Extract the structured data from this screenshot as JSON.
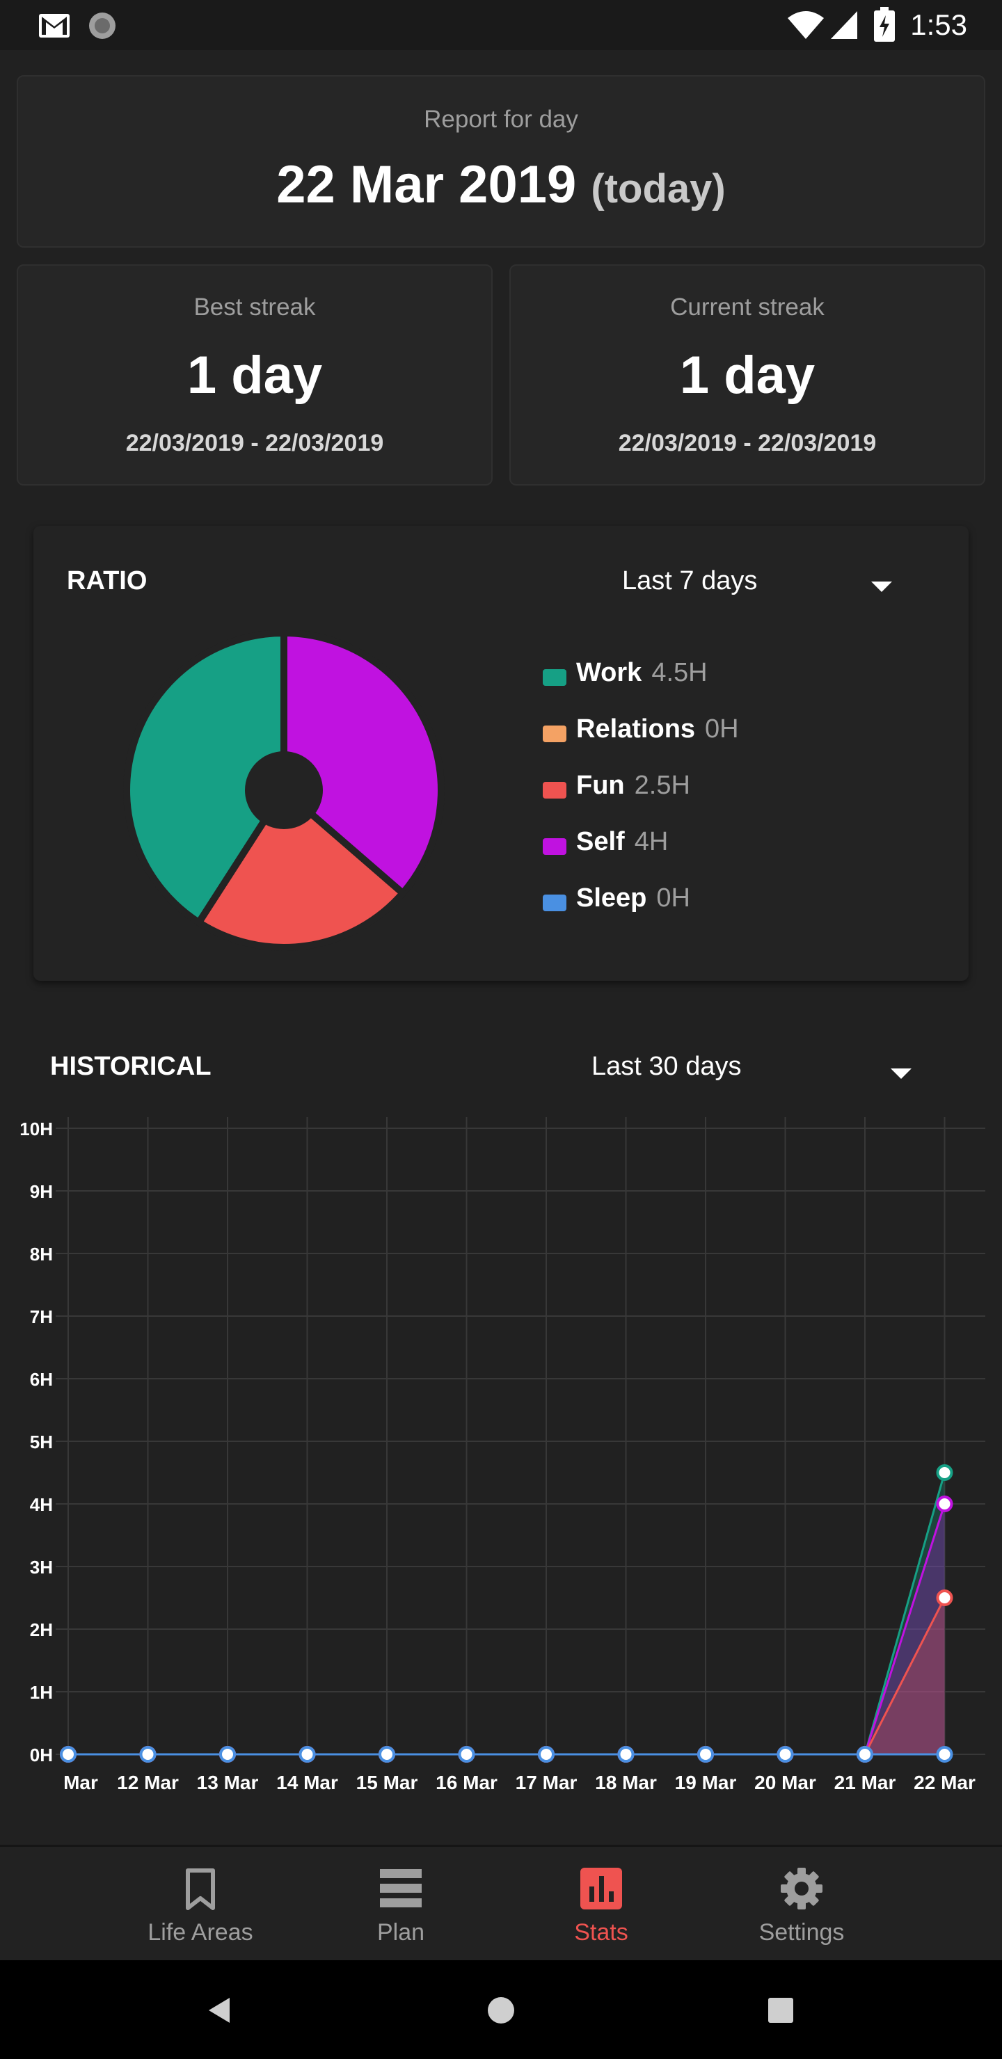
{
  "status_bar": {
    "time": "1:53"
  },
  "report": {
    "label": "Report for day",
    "date": "22 Mar 2019",
    "suffix": "(today)"
  },
  "best_streak": {
    "label": "Best streak",
    "value": "1 day",
    "range": "22/03/2019 - 22/03/2019"
  },
  "current_streak": {
    "label": "Current streak",
    "value": "1 day",
    "range": "22/03/2019 - 22/03/2019"
  },
  "ratio": {
    "title": "RATIO",
    "period": "Last 7 days",
    "legend": [
      {
        "name": "Work",
        "value": "4.5H",
        "color": "#16a085"
      },
      {
        "name": "Relations",
        "value": "0H",
        "color": "#f4a264"
      },
      {
        "name": "Fun",
        "value": "2.5H",
        "color": "#ef5350"
      },
      {
        "name": "Self",
        "value": "4H",
        "color": "#c012e0"
      },
      {
        "name": "Sleep",
        "value": "0H",
        "color": "#4a90e2"
      }
    ]
  },
  "historical": {
    "title": "HISTORICAL",
    "period": "Last 30 days"
  },
  "chart_data": [
    {
      "type": "pie",
      "categories": [
        "Work",
        "Relations",
        "Fun",
        "Self",
        "Sleep"
      ],
      "values": [
        4.5,
        0,
        2.5,
        4,
        0
      ],
      "colors": [
        "#16a085",
        "#f4a264",
        "#ef5350",
        "#c012e0",
        "#4a90e2"
      ]
    },
    {
      "type": "area",
      "categories": [
        "Mar",
        "12 Mar",
        "13 Mar",
        "14 Mar",
        "15 Mar",
        "16 Mar",
        "17 Mar",
        "18 Mar",
        "19 Mar",
        "20 Mar",
        "21 Mar",
        "22 Mar"
      ],
      "series": [
        {
          "name": "Work",
          "color": "#16a085",
          "values": [
            0,
            0,
            0,
            0,
            0,
            0,
            0,
            0,
            0,
            0,
            0,
            4.5
          ]
        },
        {
          "name": "Self",
          "color": "#c012e0",
          "values": [
            0,
            0,
            0,
            0,
            0,
            0,
            0,
            0,
            0,
            0,
            0,
            4
          ]
        },
        {
          "name": "Fun",
          "color": "#ef5350",
          "values": [
            0,
            0,
            0,
            0,
            0,
            0,
            0,
            0,
            0,
            0,
            0,
            2.5
          ]
        },
        {
          "name": "Sleep",
          "color": "#4a90e2",
          "values": [
            0,
            0,
            0,
            0,
            0,
            0,
            0,
            0,
            0,
            0,
            0,
            0
          ]
        }
      ],
      "yticks": [
        "0H",
        "1H",
        "2H",
        "3H",
        "4H",
        "5H",
        "6H",
        "7H",
        "8H",
        "9H",
        "10H"
      ],
      "ylim": [
        0,
        10
      ],
      "grid": true
    }
  ],
  "nav": {
    "items": [
      {
        "label": "Life Areas",
        "icon": "bookmark-icon"
      },
      {
        "label": "Plan",
        "icon": "list-icon"
      },
      {
        "label": "Stats",
        "icon": "bar-chart-icon",
        "active": true
      },
      {
        "label": "Settings",
        "icon": "gear-icon"
      }
    ],
    "active_color": "#ef5350"
  }
}
